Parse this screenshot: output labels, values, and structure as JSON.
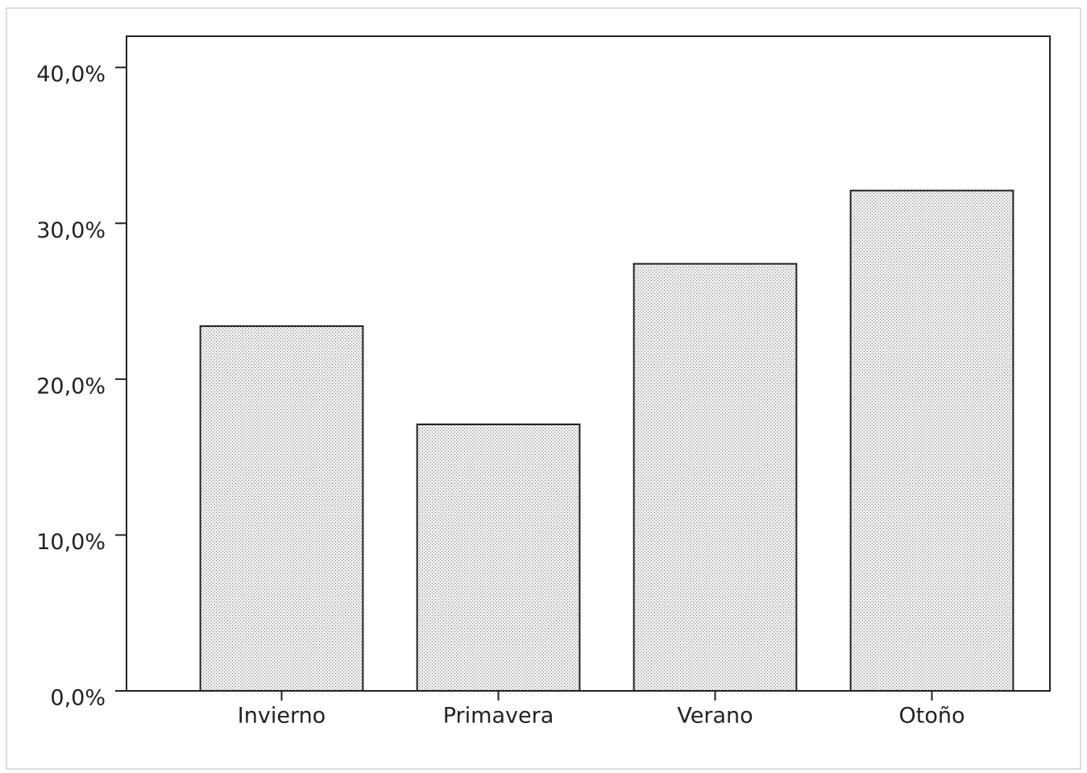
{
  "chart_data": {
    "type": "bar",
    "categories": [
      "Invierno",
      "Primavera",
      "Verano",
      "Otoño"
    ],
    "values": [
      23.4,
      17.1,
      27.4,
      32.1
    ],
    "color": "#d9d9d9",
    "ylim": [
      0,
      42
    ],
    "yticks": [
      {
        "value": 0,
        "label": "0,0%"
      },
      {
        "value": 10,
        "label": "10,0%"
      },
      {
        "value": 20,
        "label": "20,0%"
      },
      {
        "value": 30,
        "label": "30,0%"
      },
      {
        "value": 40,
        "label": "40,0%"
      }
    ],
    "grid": false
  }
}
